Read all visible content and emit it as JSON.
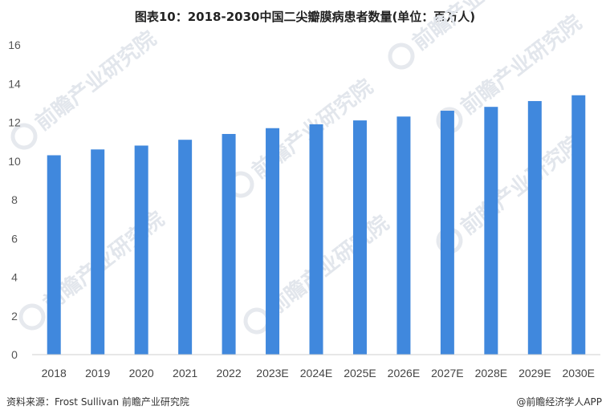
{
  "watermark": "前瞻产业研究院",
  "footer": {
    "source": "资料来源：Frost Sullivan 前瞻产业研究院",
    "brand": "@前瞻经济学人APP"
  },
  "chart_data": {
    "type": "bar",
    "title": "图表10：2018-2030中国二尖瓣膜病患者数量(单位：百万人)",
    "categories": [
      "2018",
      "2019",
      "2020",
      "2021",
      "2022",
      "2023E",
      "2024E",
      "2025E",
      "2026E",
      "2027E",
      "2028E",
      "2029E",
      "2030E"
    ],
    "values": [
      10.3,
      10.6,
      10.8,
      11.1,
      11.4,
      11.7,
      11.9,
      12.1,
      12.3,
      12.6,
      12.8,
      13.1,
      13.4
    ],
    "yticks": [
      0,
      2,
      4,
      6,
      8,
      10,
      12,
      14,
      16
    ],
    "ylim": [
      0,
      16
    ],
    "xlabel": "",
    "ylabel": "",
    "grid": false,
    "bar_color": "#4088dd"
  }
}
